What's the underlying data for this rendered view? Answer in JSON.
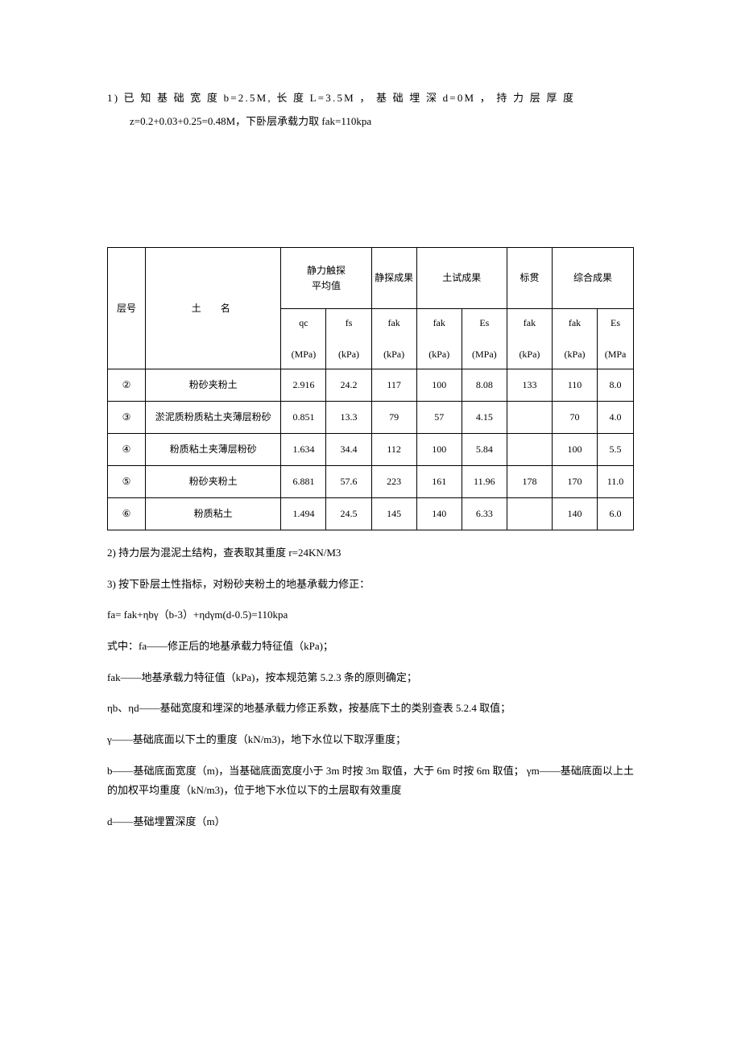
{
  "p1_a": "1)  已 知 基 础 宽 度 b=2.5M, 长 度 L=3.5M ， 基 础 埋 深 d=0M ， 持 力 层 厚 度",
  "p1_b": "z=0.2+0.03+0.25=0.48M，下卧层承载力取 fak=110kpa",
  "table": {
    "headers": {
      "layer_no": "层号",
      "soil_name": "土  名",
      "static_avg": "静力触探",
      "static_avg2": "平均值",
      "static_result": "静探成果",
      "soil_test": "土试成果",
      "spt": "标贯",
      "combined": "综合成果",
      "qc": "qc",
      "qc_u": "(MPa)",
      "fs": "fs",
      "fs_u": "(kPa)",
      "fak": "fak",
      "fak_u": "(kPa)",
      "es": "Es",
      "es_u": "(MPa)",
      "es_u2": "(MPa"
    },
    "rows": [
      {
        "no": "②",
        "name": "粉砂夹粉土",
        "qc": "2.916",
        "fs": "24.2",
        "fak1": "117",
        "fak2": "100",
        "es1": "8.08",
        "fak3": "133",
        "fak4": "110",
        "es2": "8.0"
      },
      {
        "no": "③",
        "name": "淤泥质粉质粘土夹薄层粉砂",
        "qc": "0.851",
        "fs": "13.3",
        "fak1": "79",
        "fak2": "57",
        "es1": "4.15",
        "fak3": "",
        "fak4": "70",
        "es2": "4.0"
      },
      {
        "no": "④",
        "name": "粉质粘土夹薄层粉砂",
        "qc": "1.634",
        "fs": "34.4",
        "fak1": "112",
        "fak2": "100",
        "es1": "5.84",
        "fak3": "",
        "fak4": "100",
        "es2": "5.5"
      },
      {
        "no": "⑤",
        "name": "粉砂夹粉土",
        "qc": "6.881",
        "fs": "57.6",
        "fak1": "223",
        "fak2": "161",
        "es1": "11.96",
        "fak3": "178",
        "fak4": "170",
        "es2": "11.0"
      },
      {
        "no": "⑥",
        "name": "粉质粘土",
        "qc": "1.494",
        "fs": "24.5",
        "fak1": "145",
        "fak2": "140",
        "es1": "6.33",
        "fak3": "",
        "fak4": "140",
        "es2": "6.0"
      }
    ]
  },
  "p2": "2)  持力层为混泥土结构，查表取其重度 r=24KN/M3",
  "p3": "3)  按下卧层土性指标，对粉砂夹粉土的地基承载力修正：",
  "p4": "fa= fak+ηbγ（b-3）+ηdγm(d-0.5)=110kpa",
  "p5": "式中：fa——修正后的地基承载力特征值（kPa)；",
  "p6": "fak——地基承载力特征值（kPa)，按本规范第 5.2.3 条的原则确定；",
  "p7": "ηb、ηd——基础宽度和埋深的地基承载力修正系数，按基底下土的类别查表 5.2.4 取值；",
  "p8": "γ——基础底面以下土的重度（kN/m3)，地下水位以下取浮重度；",
  "p9": "b——基础底面宽度（m)，当基础底面宽度小于 3m 时按 3m 取值，大于 6m 时按 6m 取值； γm——基础底面以上土的加权平均重度（kN/m3)，位于地下水位以下的土层取有效重度",
  "p10": "d——基础埋置深度（m）"
}
